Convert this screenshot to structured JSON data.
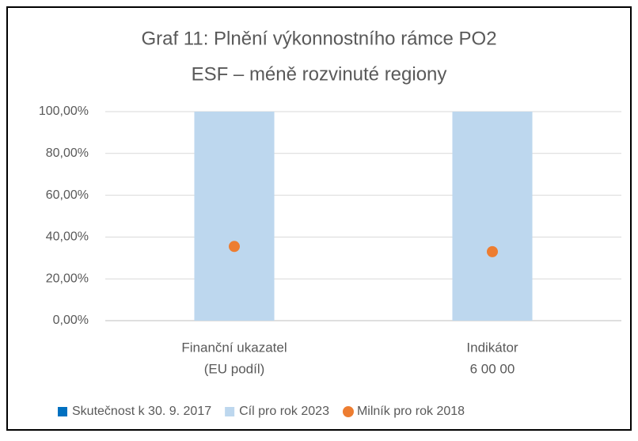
{
  "chart_data": {
    "type": "bar",
    "title": [
      "Graf 11: Plnění výkonnostního rámce PO2",
      "ESF – méně rozvinuté regiony"
    ],
    "categories": [
      [
        "Finanční ukazatel",
        "(EU podíl)"
      ],
      [
        "Indikátor",
        "6 00 00"
      ]
    ],
    "series": [
      {
        "name": "Skutečnost k 30. 9. 2017",
        "color": "#0070c0",
        "type": "bar",
        "values": [
          0,
          0
        ]
      },
      {
        "name": "Cíl pro rok 2023",
        "color": "#bdd7ee",
        "type": "bar",
        "values": [
          100,
          100
        ]
      },
      {
        "name": "Milník pro rok 2018",
        "color": "#ed7d31",
        "type": "dot",
        "values": [
          35.5,
          33
        ]
      }
    ],
    "ylim": [
      0,
      100
    ],
    "yticks": [
      {
        "value": 0,
        "label": "0,00%"
      },
      {
        "value": 20,
        "label": "20,00%"
      },
      {
        "value": 40,
        "label": "40,00%"
      },
      {
        "value": 60,
        "label": "60,00%"
      },
      {
        "value": 80,
        "label": "80,00%"
      },
      {
        "value": 100,
        "label": "100,00%"
      }
    ],
    "grid": true,
    "legend": "bottom"
  }
}
